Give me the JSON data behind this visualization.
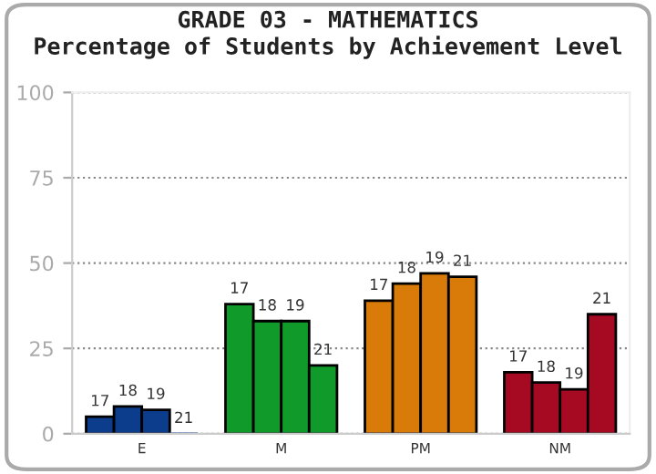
{
  "chart_data": {
    "type": "bar",
    "title": "GRADE 03 - MATHEMATICS",
    "subtitle": "Percentage of Students by Achievement Level",
    "categories": [
      "E",
      "M",
      "PM",
      "NM"
    ],
    "series": [
      {
        "name": "17",
        "colors": [
          "#0b3d8c",
          "#0f9a2a",
          "#d87b09",
          "#a50a22"
        ],
        "values": [
          5,
          38,
          39,
          18
        ]
      },
      {
        "name": "18",
        "colors": [
          "#0b3d8c",
          "#0f9a2a",
          "#d87b09",
          "#a50a22"
        ],
        "values": [
          8,
          33,
          44,
          15
        ]
      },
      {
        "name": "19",
        "colors": [
          "#0b3d8c",
          "#0f9a2a",
          "#d87b09",
          "#a50a22"
        ],
        "values": [
          7,
          33,
          47,
          13
        ]
      },
      {
        "name": "21",
        "colors": [
          "#0b3d8c",
          "#0f9a2a",
          "#d87b09",
          "#a50a22"
        ],
        "values": [
          0,
          20,
          46,
          35
        ]
      }
    ],
    "ylim": [
      0,
      100
    ],
    "yticks": [
      0,
      25,
      50,
      75,
      100
    ],
    "grid": "y",
    "legend": false
  }
}
